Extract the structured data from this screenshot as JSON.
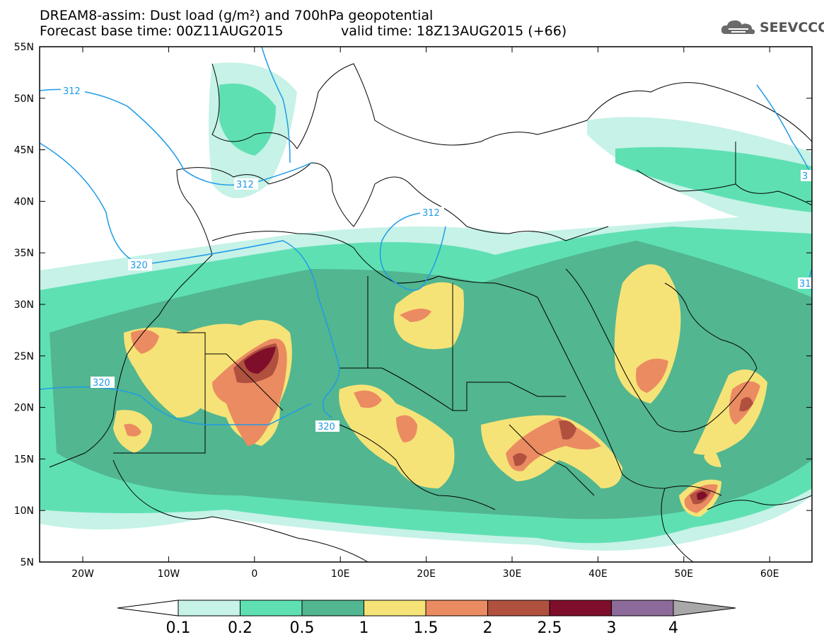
{
  "title": {
    "line1": "DREAM8-assim: Dust load (g/m²) and 700hPa geopotential",
    "line2": "Forecast base time: 00Z11AUG2015",
    "valid": "valid time: 18Z13AUG2015 (+66)"
  },
  "logo": {
    "text": "SEEVCCC",
    "icon": "cloud-icon"
  },
  "axes": {
    "lat_labels": [
      "55N",
      "50N",
      "45N",
      "40N",
      "35N",
      "30N",
      "25N",
      "20N",
      "15N",
      "10N",
      "5N"
    ],
    "lon_labels": [
      "20W",
      "10W",
      "0",
      "10E",
      "20E",
      "30E",
      "40E",
      "50E",
      "60E"
    ]
  },
  "contours": {
    "labels": [
      "312",
      "312",
      "312",
      "320",
      "320",
      "320",
      "31",
      "3"
    ]
  },
  "colorbar": {
    "ticks": [
      "0.1",
      "0.2",
      "0.5",
      "1",
      "1.5",
      "2",
      "2.5",
      "3",
      "4"
    ],
    "colors": [
      "#c6f2e7",
      "#5fe0b3",
      "#52b690",
      "#f6e377",
      "#eb8b62",
      "#b0513f",
      "#7f0e2b",
      "#8c6b9a"
    ],
    "low_color": "#ffffff",
    "high_color": "#a8a8a8"
  },
  "colors": {
    "contour": "#1e9be8",
    "coast": "#000000"
  }
}
